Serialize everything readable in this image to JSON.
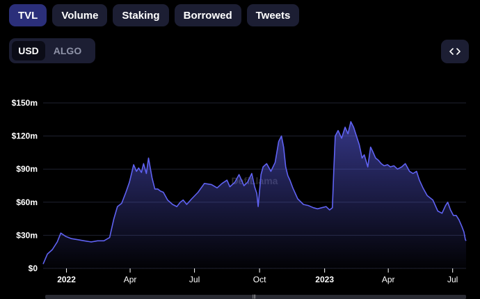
{
  "tabs": [
    "TVL",
    "Volume",
    "Staking",
    "Borrowed",
    "Tweets"
  ],
  "active_tab": "TVL",
  "currency_toggle": {
    "options": [
      "USD",
      "ALGO"
    ],
    "selected": "USD"
  },
  "embed_icon": "code-brackets-icon",
  "watermark": "DefiLlama",
  "colors": {
    "line": "#5f62f2",
    "accent_tab": "#2b2f7a",
    "button_bg": "#1c1e33"
  },
  "chart_data": {
    "type": "area",
    "x_tick_labels": [
      "2022",
      "Apr",
      "Jul",
      "Oct",
      "2023",
      "Apr",
      "Jul"
    ],
    "y_tick_labels": [
      "$0",
      "$30m",
      "$60m",
      "$90m",
      "$120m",
      "$150m"
    ],
    "y_ticks": [
      0,
      30,
      60,
      90,
      120,
      150
    ],
    "ylim": [
      0,
      150
    ],
    "unit": "USD millions",
    "xlim": [
      "2021-11-29",
      "2023-07-20"
    ],
    "grid": true,
    "series": [
      {
        "x": [
          "2021-11-29",
          "2021-12-05",
          "2021-12-12",
          "2021-12-19",
          "2021-12-24",
          "2021-12-31",
          "2022-01-08",
          "2022-01-17",
          "2022-01-26",
          "2022-02-05",
          "2022-02-14",
          "2022-02-23",
          "2022-03-03",
          "2022-03-09",
          "2022-03-14",
          "2022-03-20",
          "2022-03-26",
          "2022-03-31",
          "2022-04-03",
          "2022-04-06",
          "2022-04-10",
          "2022-04-13",
          "2022-04-17",
          "2022-04-20",
          "2022-04-24",
          "2022-04-27",
          "2022-05-02",
          "2022-05-06",
          "2022-05-10",
          "2022-05-14",
          "2022-05-18",
          "2022-05-24",
          "2022-05-31",
          "2022-06-06",
          "2022-06-11",
          "2022-06-15",
          "2022-06-20",
          "2022-06-27",
          "2022-07-06",
          "2022-07-15",
          "2022-07-25",
          "2022-08-02",
          "2022-08-09",
          "2022-08-16",
          "2022-08-20",
          "2022-08-27",
          "2022-09-02",
          "2022-09-09",
          "2022-09-14",
          "2022-09-20",
          "2022-09-24",
          "2022-09-27",
          "2022-09-29",
          "2022-10-03",
          "2022-10-06",
          "2022-10-11",
          "2022-10-17",
          "2022-10-23",
          "2022-10-28",
          "2022-11-01",
          "2022-11-04",
          "2022-11-07",
          "2022-11-10",
          "2022-11-13",
          "2022-11-17",
          "2022-11-24",
          "2022-12-02",
          "2022-12-09",
          "2022-12-16",
          "2022-12-22",
          "2022-12-28",
          "2023-01-03",
          "2023-01-08",
          "2023-01-12",
          "2023-01-14",
          "2023-01-16",
          "2023-01-20",
          "2023-01-25",
          "2023-01-30",
          "2023-02-03",
          "2023-02-07",
          "2023-02-11",
          "2023-02-15",
          "2023-02-19",
          "2023-02-23",
          "2023-02-26",
          "2023-03-03",
          "2023-03-07",
          "2023-03-10",
          "2023-03-14",
          "2023-03-18",
          "2023-03-22",
          "2023-03-26",
          "2023-03-31",
          "2023-04-04",
          "2023-04-09",
          "2023-04-14",
          "2023-04-20",
          "2023-04-25",
          "2023-05-01",
          "2023-05-06",
          "2023-05-11",
          "2023-05-15",
          "2023-05-20",
          "2023-05-26",
          "2023-06-03",
          "2023-06-10",
          "2023-06-16",
          "2023-06-21",
          "2023-06-24",
          "2023-06-28",
          "2023-07-02",
          "2023-07-06",
          "2023-07-10",
          "2023-07-14",
          "2023-07-17",
          "2023-07-19",
          "2023-07-20"
        ],
        "y": [
          4,
          13,
          17,
          24,
          32,
          29,
          27,
          26,
          25,
          24,
          25,
          25,
          28,
          45,
          56,
          59,
          69,
          78,
          86,
          94,
          88,
          91,
          87,
          95,
          86,
          100,
          82,
          72,
          72,
          70,
          69,
          62,
          58,
          56,
          60,
          62,
          58,
          63,
          69,
          77,
          76,
          73,
          77,
          80,
          74,
          78,
          85,
          75,
          78,
          86,
          74,
          68,
          56,
          85,
          92,
          95,
          88,
          96,
          115,
          120,
          110,
          92,
          84,
          80,
          73,
          63,
          58,
          57,
          55,
          54,
          55,
          56,
          53,
          55,
          90,
          120,
          125,
          118,
          128,
          122,
          133,
          128,
          120,
          112,
          100,
          103,
          92,
          110,
          106,
          100,
          98,
          95,
          93,
          94,
          92,
          93,
          90,
          92,
          95,
          88,
          86,
          88,
          80,
          73,
          66,
          62,
          52,
          50,
          57,
          60,
          53,
          48,
          48,
          44,
          38,
          33,
          26,
          25
        ],
        "x_values_note": "approximate daily TVL read from chart"
      }
    ]
  }
}
